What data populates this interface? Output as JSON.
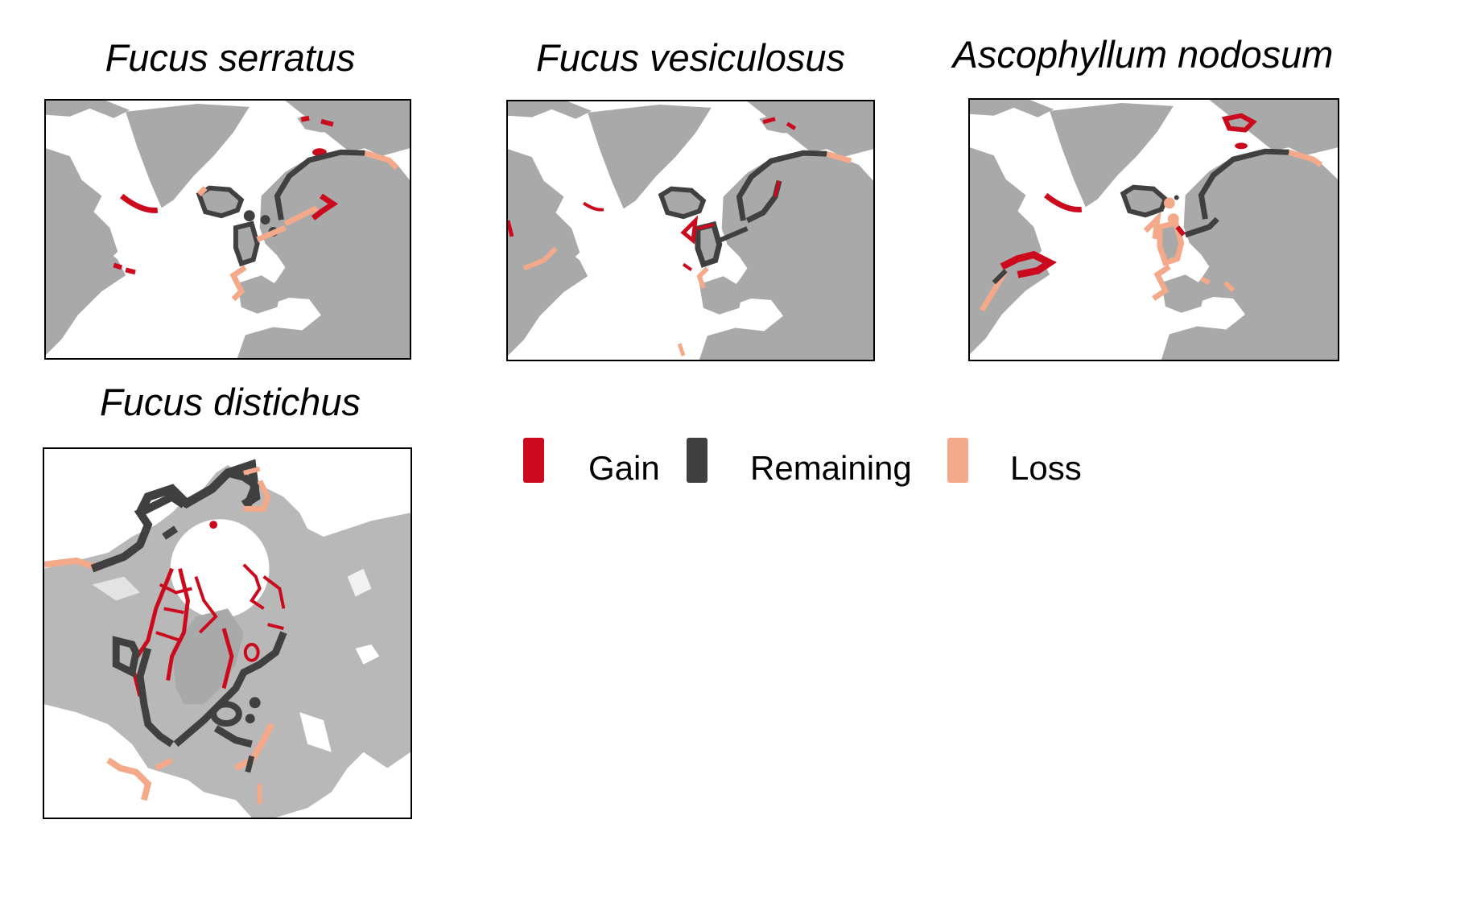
{
  "figure": {
    "colors": {
      "land": "#a9a9a9",
      "ocean": "#ffffff",
      "gain": "#cc0a1e",
      "remaining": "#404040",
      "loss": "#f3a98a"
    },
    "panels": [
      {
        "id": "fucus-serratus",
        "title": "Fucus serratus",
        "region": "north-atlantic"
      },
      {
        "id": "fucus-vesiculosus",
        "title": "Fucus vesiculosus",
        "region": "north-atlantic"
      },
      {
        "id": "ascophyllum-nodosum",
        "title": "Ascophyllum nodosum",
        "region": "north-atlantic"
      },
      {
        "id": "fucus-distichus",
        "title": "Fucus distichus",
        "region": "polar"
      }
    ]
  },
  "legend": {
    "items": [
      {
        "label": "Gain",
        "color": "#cc0a1e"
      },
      {
        "label": "Remaining",
        "color": "#404040"
      },
      {
        "label": "Loss",
        "color": "#f3a98a"
      }
    ]
  }
}
